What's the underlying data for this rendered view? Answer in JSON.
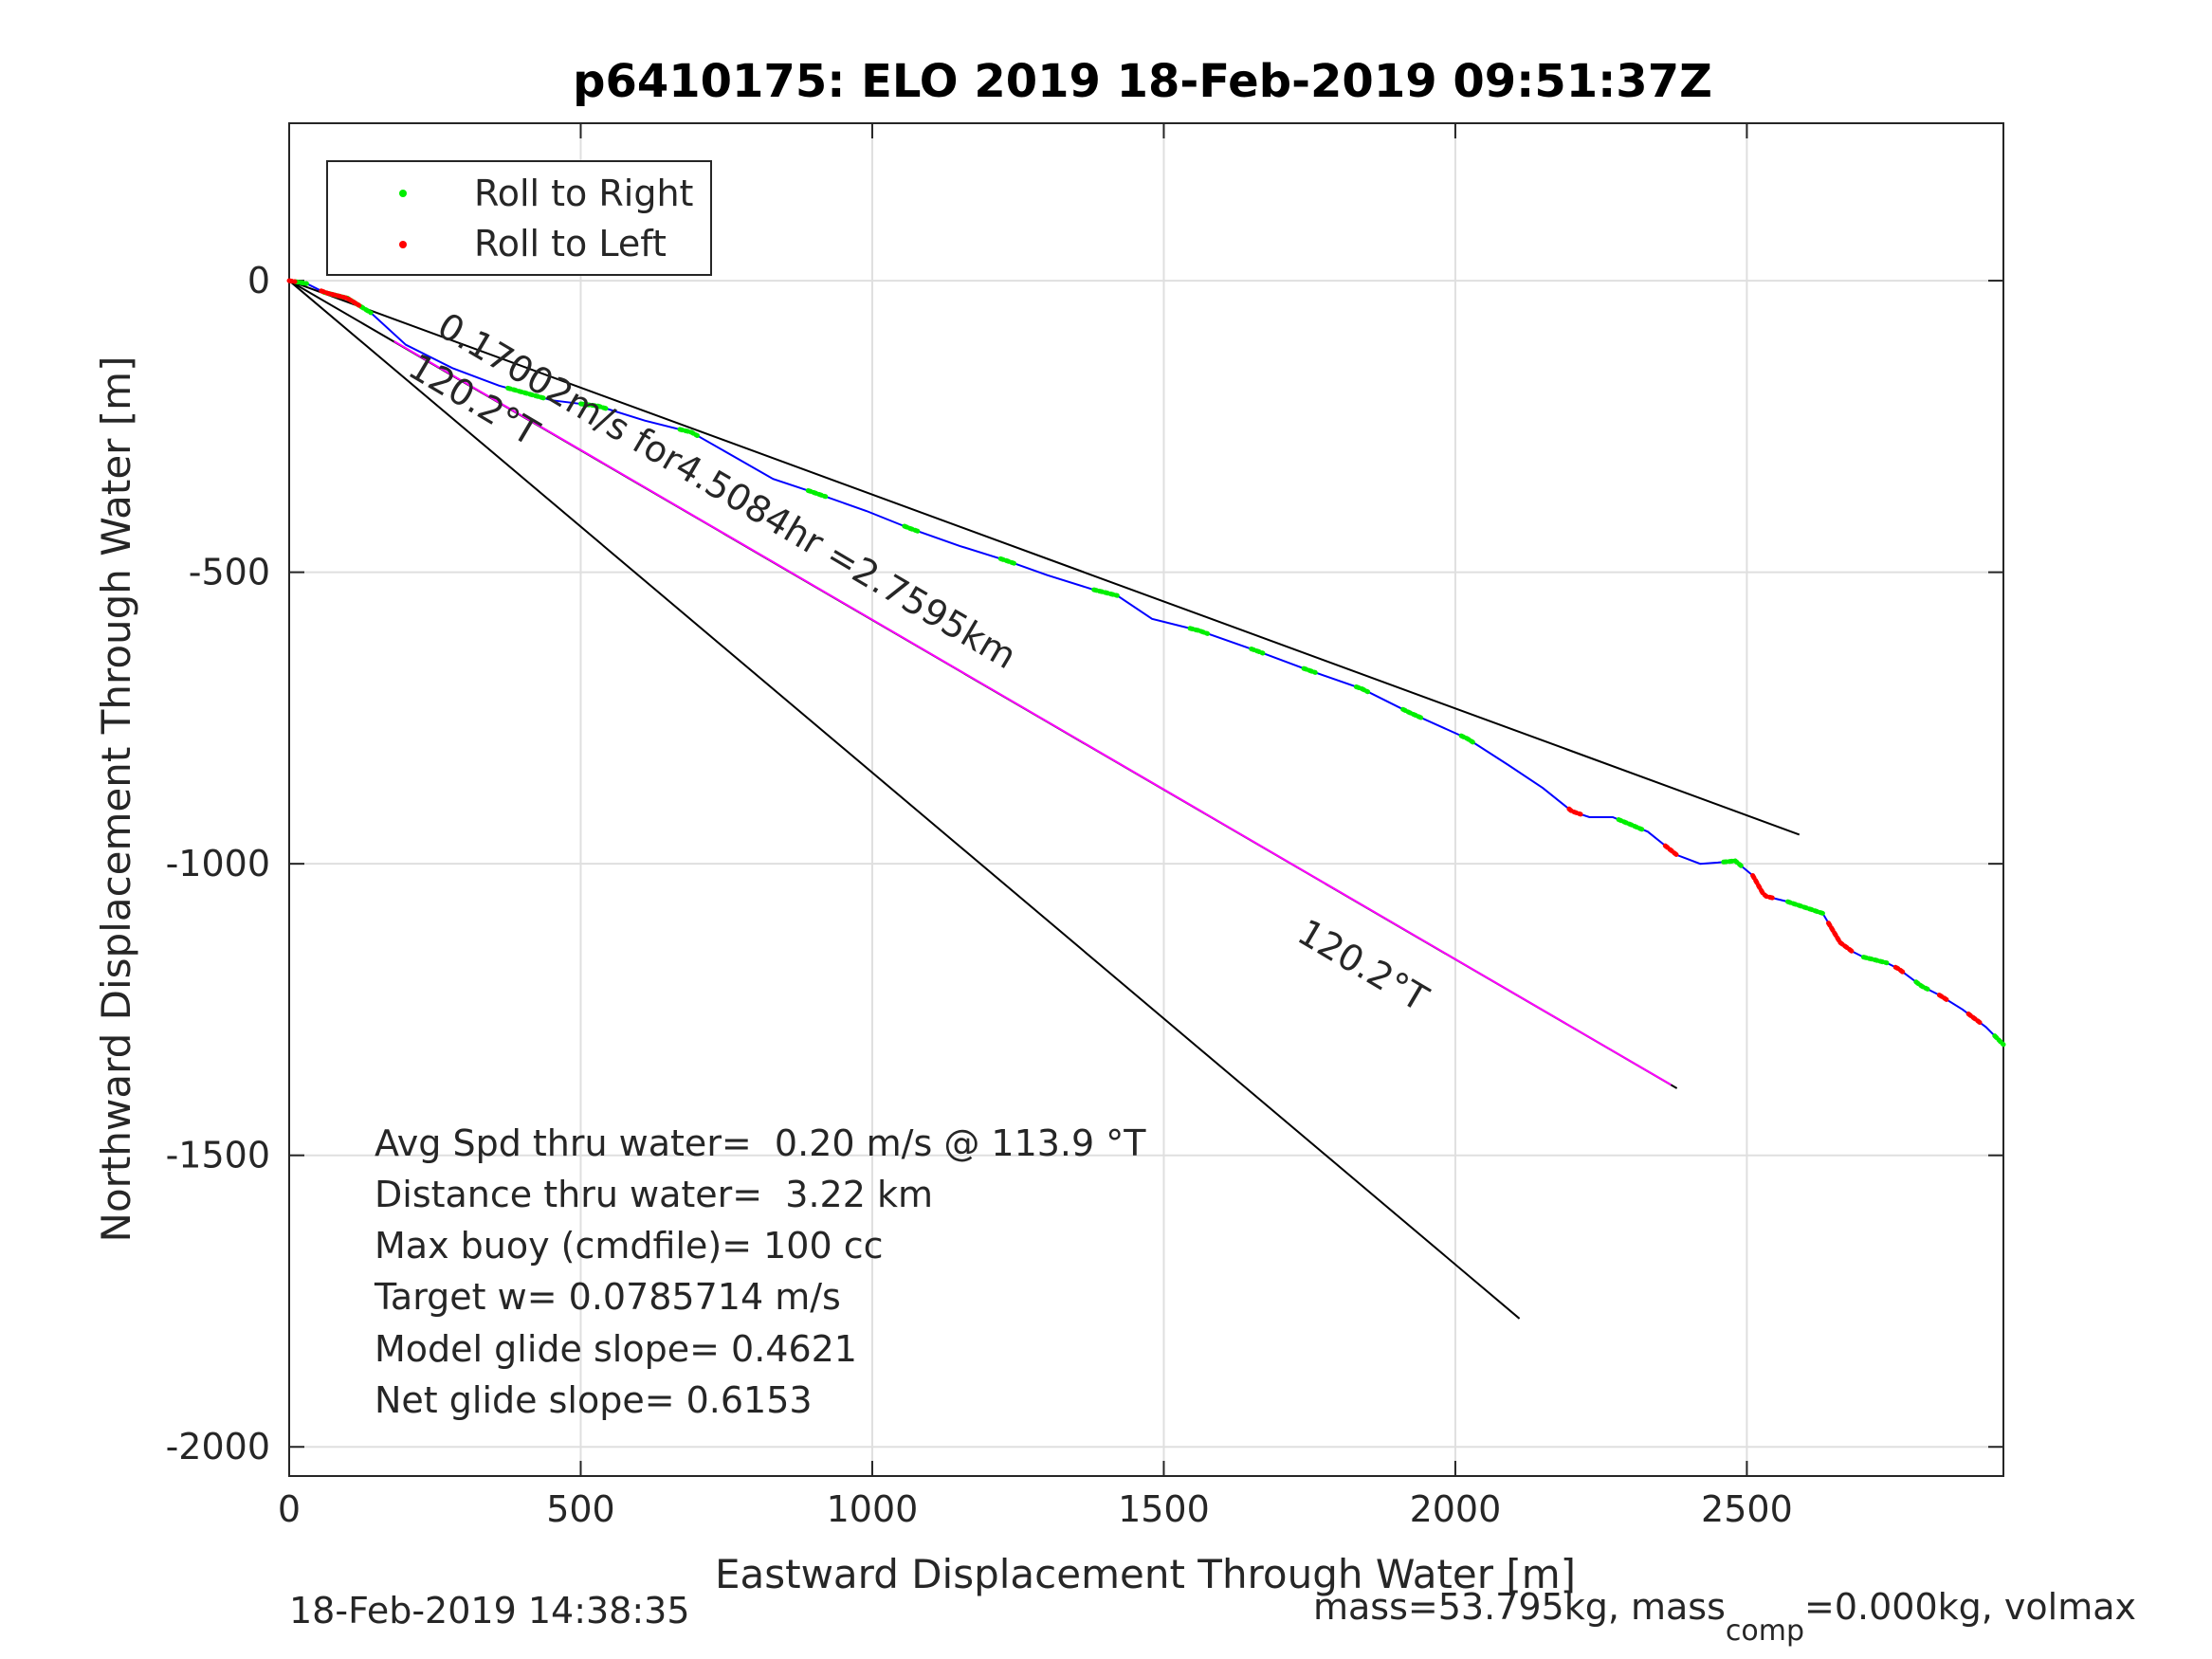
{
  "chart_data": {
    "type": "line",
    "title": "p6410175: ELO 2019 18-Feb-2019 09:51:37Z",
    "xlabel": "Eastward Displacement Through Water [m]",
    "ylabel": "Northward Displacement Through Water [m]",
    "xlim": [
      0,
      2940
    ],
    "ylim": [
      -2050,
      270
    ],
    "xticks": [
      "0",
      "500",
      "1000",
      "1500",
      "2000",
      "2500"
    ],
    "xtick_values": [
      0,
      500,
      1000,
      1500,
      2000,
      2500
    ],
    "yticks": [
      "0",
      "-500",
      "-1000",
      "-1500",
      "-2000"
    ],
    "ytick_values": [
      0,
      -500,
      -1000,
      -1500,
      -2000
    ],
    "grid": true,
    "legend": {
      "position": "top-left",
      "entries": [
        {
          "label": "Roll to Right",
          "color": "#00ee00"
        },
        {
          "label": "Roll to Left",
          "color": "#ff0000"
        }
      ]
    },
    "track": {
      "color": "#0000ff",
      "x": [
        0,
        30,
        60,
        100,
        140,
        200,
        280,
        360,
        450,
        530,
        610,
        690,
        760,
        830,
        905,
        990,
        1065,
        1150,
        1230,
        1300,
        1380,
        1420,
        1480,
        1560,
        1660,
        1740,
        1840,
        1920,
        2020,
        2090,
        2150,
        2200,
        2230,
        2270,
        2330,
        2380,
        2420,
        2450,
        2480,
        2510,
        2530,
        2550,
        2570,
        2600,
        2630,
        2660,
        2680,
        2700,
        2720,
        2740,
        2760,
        2800,
        2830,
        2870,
        2910,
        2940
      ],
      "y": [
        0,
        -5,
        -20,
        -30,
        -55,
        -110,
        -150,
        -180,
        -205,
        -215,
        -240,
        -260,
        -300,
        -340,
        -365,
        -395,
        -425,
        -455,
        -480,
        -505,
        -530,
        -540,
        -580,
        -600,
        -635,
        -665,
        -700,
        -740,
        -785,
        -830,
        -870,
        -910,
        -920,
        -920,
        -945,
        -985,
        -1000,
        -998,
        -995,
        -1020,
        -1055,
        -1060,
        -1065,
        -1075,
        -1085,
        -1135,
        -1150,
        -1160,
        -1165,
        -1170,
        -1180,
        -1210,
        -1225,
        -1250,
        -1280,
        -1310
      ]
    },
    "roll_right_segments": [
      [
        10,
        30
      ],
      [
        60,
        140
      ],
      [
        375,
        440
      ],
      [
        500,
        545
      ],
      [
        670,
        700
      ],
      [
        890,
        920
      ],
      [
        1055,
        1080
      ],
      [
        1220,
        1245
      ],
      [
        1380,
        1420
      ],
      [
        1545,
        1575
      ],
      [
        1650,
        1670
      ],
      [
        1740,
        1760
      ],
      [
        1830,
        1850
      ],
      [
        1910,
        1945
      ],
      [
        2010,
        2030
      ],
      [
        2280,
        2320
      ],
      [
        2460,
        2490
      ],
      [
        2570,
        2630
      ],
      [
        2700,
        2740
      ],
      [
        2790,
        2810
      ],
      [
        2925,
        2940
      ]
    ],
    "roll_left_segments": [
      [
        0,
        10
      ],
      [
        55,
        120
      ],
      [
        2195,
        2215
      ],
      [
        2360,
        2380
      ],
      [
        2510,
        2545
      ],
      [
        2640,
        2680
      ],
      [
        2755,
        2770
      ],
      [
        2830,
        2845
      ],
      [
        2880,
        2900
      ]
    ],
    "reference_lines": [
      {
        "name": "upper",
        "color": "#000000",
        "x": [
          0,
          2590
        ],
        "y": [
          0,
          -950
        ]
      },
      {
        "name": "middle",
        "color": "#000000",
        "x": [
          0,
          2380
        ],
        "y": [
          0,
          -1385
        ]
      },
      {
        "name": "middle-overlay",
        "color": "#ff00ff",
        "x": [
          180,
          2370
        ],
        "y": [
          -104,
          -1379
        ]
      },
      {
        "name": "lower",
        "color": "#000000",
        "x": [
          0,
          2110
        ],
        "y": [
          0,
          -1780
        ]
      }
    ],
    "annotations": [
      {
        "text": "0.17002m/s for4.5084hr =2.7595km",
        "x": 250,
        "y": -90,
        "rotation_deg": 30.5
      },
      {
        "text": "120.2°T",
        "x": 200,
        "y": -160,
        "rotation_deg": 30.5
      },
      {
        "text": "120.2°T",
        "x": 1725,
        "y": -1130,
        "rotation_deg": 30.5
      }
    ],
    "stats": [
      "Avg Spd thru water=  0.20 m/s @ 113.9 °T",
      "Distance thru water=  3.22 km",
      "Max buoy (cmdfile)= 100 cc",
      "Target w= 0.0785714 m/s",
      "Model glide slope= 0.4621",
      "Net glide slope= 0.6153"
    ],
    "footer": {
      "timestamp": "18-Feb-2019 14:38:35",
      "mass_prefix": "mass=53.795kg, mass",
      "mass_sub": "comp",
      "mass_suffix": "=0.000kg, volmax"
    }
  }
}
